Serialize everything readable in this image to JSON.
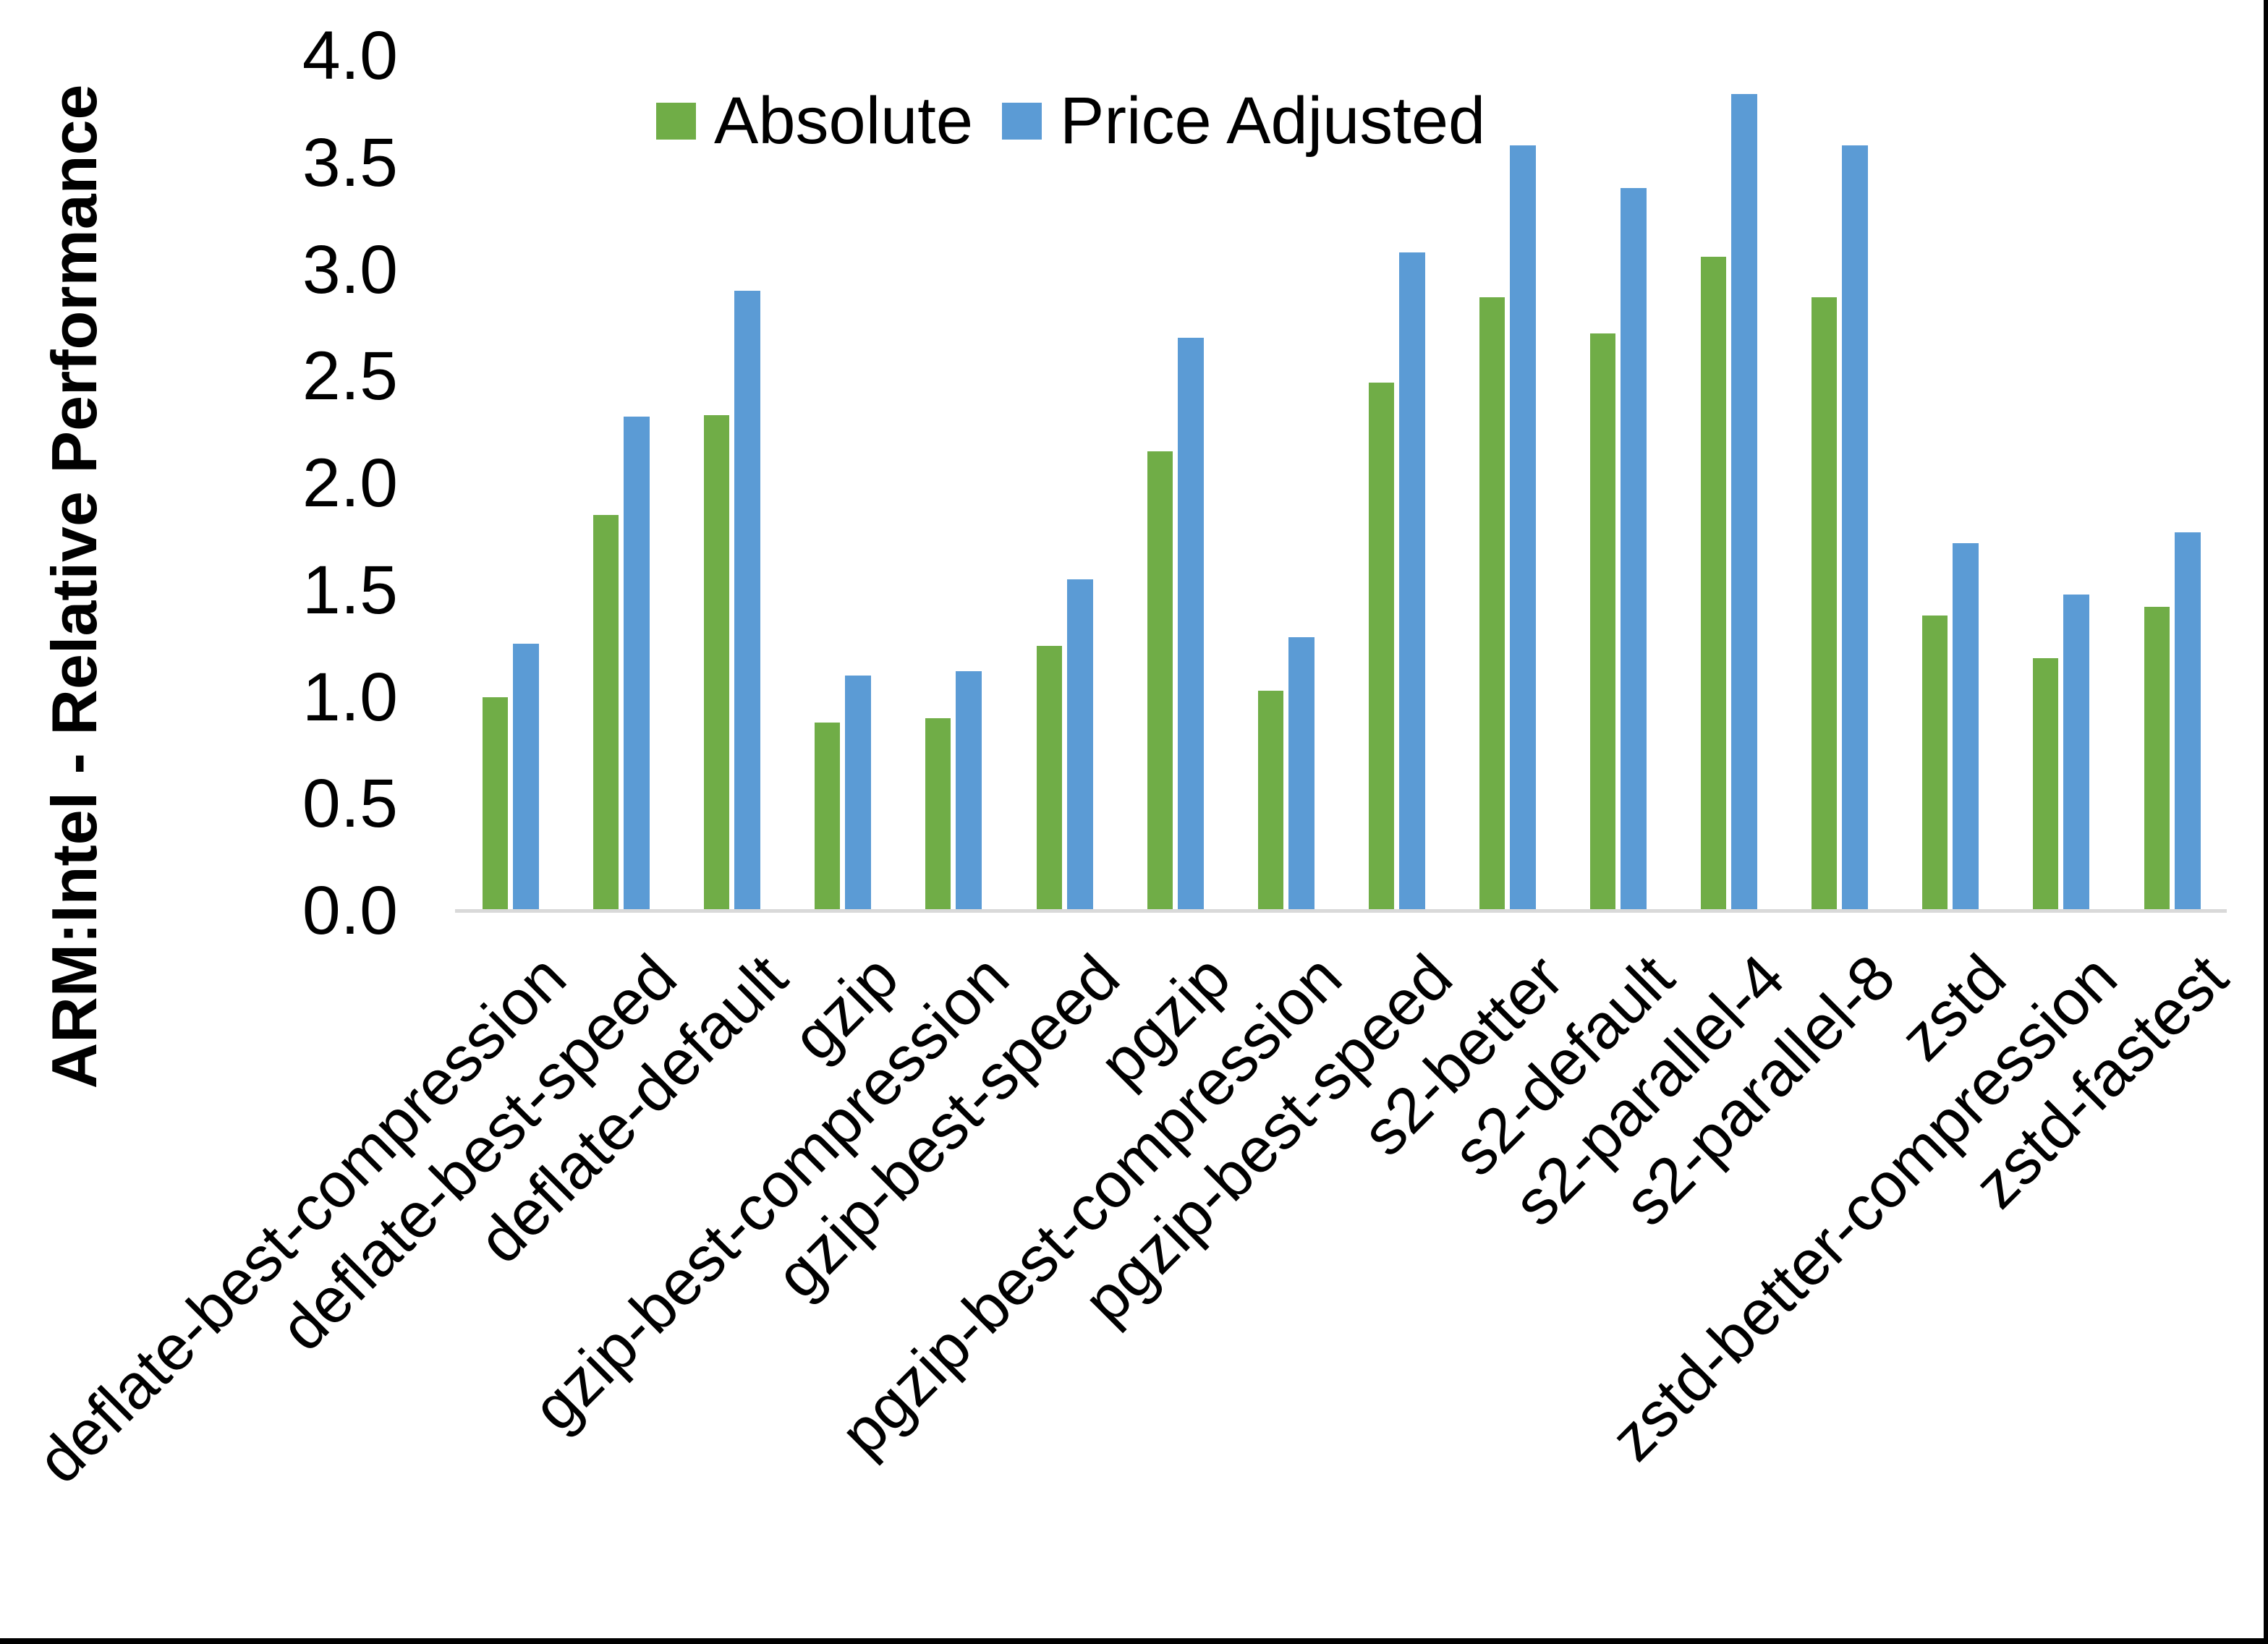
{
  "chart_data": {
    "type": "bar",
    "title": "",
    "xlabel": "",
    "ylabel": "ARM:Intel - Relative Performance",
    "ylim": [
      0.0,
      4.0
    ],
    "ytick_step": 0.5,
    "ytick_labels": [
      "0.0",
      "0.5",
      "1.0",
      "1.5",
      "2.0",
      "2.5",
      "3.0",
      "3.5",
      "4.0"
    ],
    "grid": false,
    "legend_position": "top",
    "axis_line_color": "#D9D9D9",
    "categories": [
      "deflate-best-compression",
      "deflate-best-speed",
      "deflate-default",
      "gzip",
      "gzip-best-compression",
      "gzip-best-speed",
      "pgzip",
      "pgzip-best-compression",
      "pgzip-best-speed",
      "s2-better",
      "s2-default",
      "s2-parallel-4",
      "s2-parallel-8",
      "zstd",
      "zstd-better-compression",
      "zstd-fastest"
    ],
    "series": [
      {
        "name": "Absolute",
        "color": "#70AD47",
        "values": [
          1.0,
          1.85,
          2.32,
          0.88,
          0.9,
          1.24,
          2.15,
          1.03,
          2.47,
          2.87,
          2.7,
          3.06,
          2.87,
          1.38,
          1.18,
          1.42
        ]
      },
      {
        "name": "Price Adjusted",
        "color": "#5B9BD5",
        "values": [
          1.25,
          2.31,
          2.9,
          1.1,
          1.12,
          1.55,
          2.68,
          1.28,
          3.08,
          3.58,
          3.38,
          3.82,
          3.58,
          1.72,
          1.48,
          1.77
        ]
      }
    ]
  }
}
